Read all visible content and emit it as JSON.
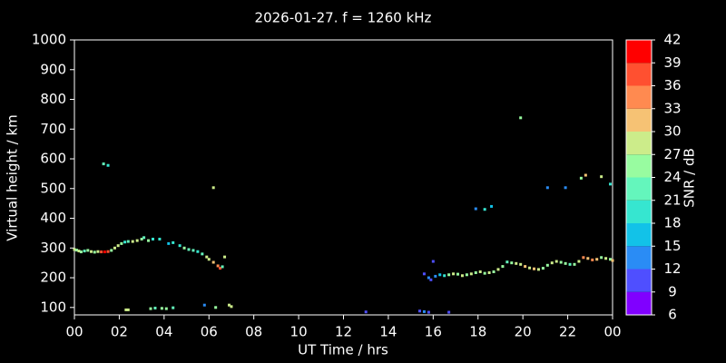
{
  "chart_data": {
    "type": "scatter",
    "title": "2026-01-27. f = 1260 kHz",
    "x_label": "UT Time / hrs",
    "y_label": "Virtual height / km",
    "colorbar_label": "SNR / dB",
    "xlim": [
      0,
      24
    ],
    "ylim": [
      75,
      1000
    ],
    "xticks": [
      {
        "value": 0,
        "label": "00"
      },
      {
        "value": 2,
        "label": "02"
      },
      {
        "value": 4,
        "label": "04"
      },
      {
        "value": 6,
        "label": "06"
      },
      {
        "value": 8,
        "label": "08"
      },
      10,
      12,
      14,
      16,
      18,
      20,
      22,
      {
        "value": 24,
        "label": "00"
      }
    ],
    "yticks": [
      100,
      200,
      300,
      400,
      500,
      600,
      700,
      800,
      900,
      1000
    ],
    "colorbar_ticks": [
      6,
      9,
      12,
      15,
      18,
      21,
      24,
      27,
      30,
      33,
      36,
      39,
      42
    ],
    "colorbar_colors": [
      "#8000ff",
      "#4f4fff",
      "#2a8cf5",
      "#12c2e8",
      "#36e6d0",
      "#64f6bc",
      "#98fca0",
      "#ccec8a",
      "#f6c274",
      "#ff8a50",
      "#ff5030",
      "#ff0000"
    ],
    "x": [
      0.0,
      0.1,
      0.2,
      0.3,
      0.45,
      0.6,
      0.75,
      0.9,
      1.05,
      1.2,
      1.35,
      1.5,
      1.65,
      1.8,
      1.95,
      2.1,
      2.25,
      2.4,
      2.6,
      2.8,
      3.0,
      3.1,
      3.3,
      3.5,
      3.8,
      4.2,
      4.4,
      4.7,
      4.9,
      5.1,
      5.3,
      5.5,
      5.7,
      5.9,
      6.0,
      6.2,
      6.4,
      6.5,
      6.6,
      6.7,
      1.3,
      1.5,
      6.2,
      6.3,
      2.3,
      2.4,
      3.4,
      3.6,
      3.9,
      4.1,
      4.4,
      5.8,
      6.9,
      7.0,
      13.0,
      15.4,
      15.6,
      15.8,
      16.7,
      15.6,
      15.8,
      15.9,
      16.0,
      16.1,
      16.3,
      16.5,
      16.7,
      16.9,
      17.1,
      17.3,
      17.5,
      17.7,
      17.9,
      18.1,
      18.3,
      18.5,
      18.7,
      18.9,
      19.1,
      19.3,
      19.5,
      19.7,
      19.9,
      20.1,
      20.3,
      20.5,
      20.7,
      20.9,
      21.1,
      21.3,
      21.5,
      21.7,
      21.9,
      22.1,
      22.3,
      22.5,
      22.7,
      22.9,
      23.1,
      23.3,
      23.5,
      23.7,
      23.9,
      24.0,
      17.9,
      18.3,
      18.6,
      19.9,
      21.1,
      21.9,
      22.6,
      22.8,
      23.5,
      23.9
    ],
    "values": [
      295,
      293,
      290,
      287,
      290,
      292,
      288,
      286,
      288,
      287,
      287,
      288,
      292,
      300,
      308,
      315,
      320,
      322,
      322,
      325,
      330,
      335,
      325,
      330,
      330,
      315,
      318,
      308,
      300,
      295,
      292,
      288,
      280,
      270,
      262,
      252,
      240,
      232,
      237,
      270,
      583,
      578,
      503,
      100,
      92,
      92,
      96,
      98,
      97,
      96,
      99,
      108,
      108,
      103,
      85,
      88,
      86,
      84,
      84,
      213,
      200,
      193,
      255,
      205,
      210,
      207,
      210,
      213,
      212,
      207,
      210,
      213,
      217,
      220,
      215,
      217,
      220,
      228,
      238,
      253,
      250,
      248,
      245,
      238,
      233,
      230,
      228,
      232,
      242,
      250,
      255,
      252,
      248,
      245,
      245,
      255,
      268,
      265,
      260,
      262,
      268,
      265,
      262,
      258,
      432,
      430,
      440,
      738,
      503,
      503,
      535,
      545,
      540,
      515
    ],
    "snr": [
      27,
      24,
      27,
      24,
      21,
      24,
      27,
      24,
      27,
      36,
      39,
      36,
      24,
      27,
      27,
      24,
      18,
      21,
      27,
      27,
      24,
      21,
      24,
      18,
      18,
      15,
      18,
      18,
      24,
      21,
      21,
      18,
      21,
      27,
      27,
      30,
      33,
      36,
      21,
      27,
      21,
      18,
      27,
      24,
      27,
      27,
      24,
      21,
      24,
      24,
      21,
      12,
      27,
      27,
      9,
      9,
      12,
      9,
      9,
      9,
      12,
      9,
      9,
      12,
      15,
      18,
      24,
      27,
      24,
      27,
      24,
      27,
      24,
      27,
      24,
      27,
      24,
      27,
      24,
      21,
      24,
      27,
      27,
      30,
      27,
      30,
      27,
      24,
      24,
      27,
      27,
      24,
      24,
      21,
      24,
      27,
      33,
      30,
      33,
      30,
      24,
      27,
      24,
      30,
      12,
      18,
      15,
      24,
      12,
      12,
      24,
      30,
      27,
      18
    ]
  }
}
